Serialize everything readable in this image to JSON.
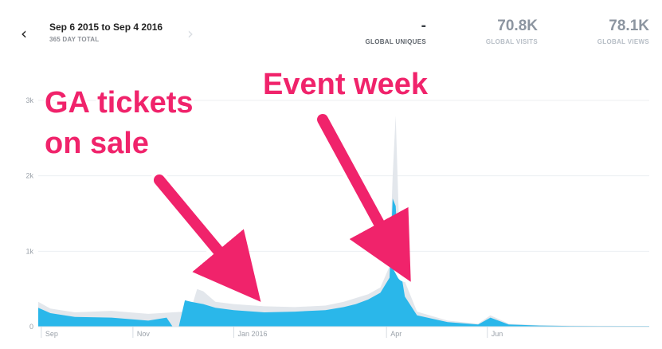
{
  "header": {
    "prev_icon": "chevron-left-icon",
    "next_icon": "chevron-right-icon",
    "range_title": "Sep 6 2015 to Sep 4 2016",
    "range_subtitle": "365 DAY TOTAL",
    "stats": [
      {
        "label": "GLOBAL UNIQUES",
        "value": "-"
      },
      {
        "label": "GLOBAL VISITS",
        "value": "70.8K"
      },
      {
        "label": "GLOBAL VIEWS",
        "value": "78.1K"
      }
    ]
  },
  "colors": {
    "accent_area": "#2ab7ea",
    "background_area": "#e3e7ec",
    "annotation": "#f0236b",
    "gridline": "#eceff2",
    "axis_text": "#9aa1a9"
  },
  "chart_data": {
    "type": "area",
    "x_tick_labels": [
      "Sep",
      "Nov",
      "Jan 2016",
      "Apr",
      "Jun"
    ],
    "y_tick_labels": [
      "0",
      "1k",
      "2k",
      "3k"
    ],
    "ylim": [
      0,
      3000
    ],
    "grid": true,
    "series": [
      {
        "name": "",
        "values": [
          [
            2015.68,
            330
          ],
          [
            2015.7,
            240
          ],
          [
            2015.74,
            190
          ],
          [
            2015.8,
            210
          ],
          [
            2015.86,
            170
          ],
          [
            2015.9,
            190
          ],
          [
            2015.92,
            200
          ],
          [
            2015.93,
            230
          ],
          [
            2015.94,
            500
          ],
          [
            2015.95,
            470
          ],
          [
            2015.97,
            330
          ],
          [
            2016.0,
            300
          ],
          [
            2016.05,
            270
          ],
          [
            2016.1,
            260
          ],
          [
            2016.15,
            280
          ],
          [
            2016.18,
            330
          ],
          [
            2016.2,
            380
          ],
          [
            2016.22,
            430
          ],
          [
            2016.24,
            520
          ],
          [
            2016.255,
            800
          ],
          [
            2016.26,
            2000
          ],
          [
            2016.265,
            2800
          ],
          [
            2016.27,
            1500
          ],
          [
            2016.28,
            600
          ],
          [
            2016.3,
            200
          ],
          [
            2016.35,
            80
          ],
          [
            2016.4,
            40
          ],
          [
            2016.42,
            150
          ],
          [
            2016.45,
            40
          ],
          [
            2016.5,
            20
          ],
          [
            2016.55,
            15
          ],
          [
            2016.6,
            12
          ],
          [
            2016.68,
            10
          ]
        ]
      },
      {
        "name": "",
        "values": [
          [
            2015.68,
            250
          ],
          [
            2015.7,
            180
          ],
          [
            2015.74,
            130
          ],
          [
            2015.8,
            120
          ],
          [
            2015.86,
            80
          ],
          [
            2015.89,
            120
          ],
          [
            2015.9,
            0
          ],
          [
            2015.91,
            0
          ],
          [
            2015.92,
            350
          ],
          [
            2015.93,
            330
          ],
          [
            2015.95,
            300
          ],
          [
            2015.97,
            250
          ],
          [
            2016.0,
            220
          ],
          [
            2016.05,
            190
          ],
          [
            2016.1,
            200
          ],
          [
            2016.15,
            220
          ],
          [
            2016.18,
            260
          ],
          [
            2016.2,
            300
          ],
          [
            2016.22,
            360
          ],
          [
            2016.24,
            450
          ],
          [
            2016.255,
            650
          ],
          [
            2016.26,
            1700
          ],
          [
            2016.265,
            1600
          ],
          [
            2016.27,
            900
          ],
          [
            2016.28,
            400
          ],
          [
            2016.3,
            150
          ],
          [
            2016.35,
            60
          ],
          [
            2016.4,
            30
          ],
          [
            2016.42,
            120
          ],
          [
            2016.45,
            30
          ],
          [
            2016.5,
            15
          ],
          [
            2016.55,
            10
          ],
          [
            2016.6,
            8
          ],
          [
            2016.68,
            7
          ]
        ]
      }
    ],
    "annotations": [
      "GA tickets",
      "on sale",
      "Event week"
    ]
  }
}
